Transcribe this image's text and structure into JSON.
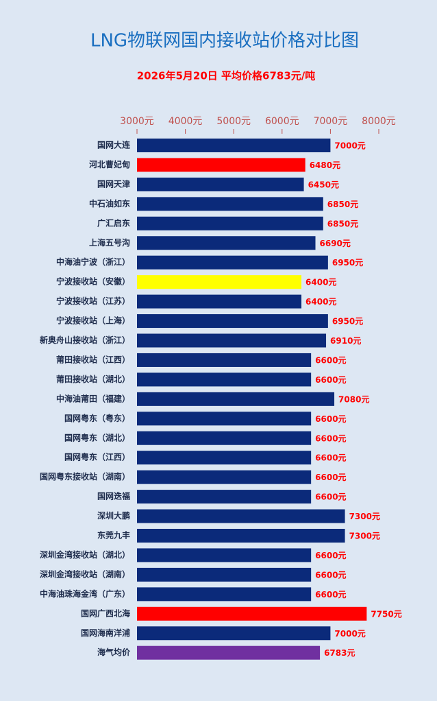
{
  "chart_data": {
    "type": "barh",
    "title": "LNG物联网国内接收站价格对比图",
    "subtitle": "2026年5月20日 平均价格6783元/吨",
    "categories": [
      "国网大连",
      "河北曹妃甸",
      "国网天津",
      "中石油如东",
      "广汇启东",
      "上海五号沟",
      "中海油宁波（浙江）",
      "宁波接收站（安徽）",
      "宁波接收站（江苏）",
      "宁波接收站（上海）",
      "新奥舟山接收站（浙江）",
      "莆田接收站（江西）",
      "莆田接收站（湖北）",
      "中海油莆田（福建）",
      "国网粤东（粤东）",
      "国网粤东（湖北）",
      "国网粤东（江西）",
      "国网粤东接收站（湖南）",
      "国网迭福",
      "深圳大鹏",
      "东莞九丰",
      "深圳金湾接收站（湖北）",
      "深圳金湾接收站（湖南）",
      "中海油珠海金湾（广东）",
      "国网广西北海",
      "国网海南洋浦",
      "海气均价"
    ],
    "values": [
      7000,
      6480,
      6450,
      6850,
      6850,
      6690,
      6950,
      6400,
      6400,
      6950,
      6910,
      6600,
      6600,
      7080,
      6600,
      6600,
      6600,
      6600,
      6600,
      7300,
      7300,
      6600,
      6600,
      6600,
      7750,
      7000,
      6783
    ],
    "value_labels": [
      "7000元",
      "6480元",
      "6450元",
      "6850元",
      "6850元",
      "6690元",
      "6950元",
      "6400元",
      "6400元",
      "6950元",
      "6910元",
      "6600元",
      "6600元",
      "7080元",
      "6600元",
      "6600元",
      "6600元",
      "6600元",
      "6600元",
      "7300元",
      "7300元",
      "6600元",
      "6600元",
      "6600元",
      "7750元",
      "7000元",
      "6783元"
    ],
    "colors": [
      "#0b2a7a",
      "#ff0000",
      "#0b2a7a",
      "#0b2a7a",
      "#0b2a7a",
      "#0b2a7a",
      "#0b2a7a",
      "#ffff00",
      "#0b2a7a",
      "#0b2a7a",
      "#0b2a7a",
      "#0b2a7a",
      "#0b2a7a",
      "#0b2a7a",
      "#0b2a7a",
      "#0b2a7a",
      "#0b2a7a",
      "#0b2a7a",
      "#0b2a7a",
      "#0b2a7a",
      "#0b2a7a",
      "#0b2a7a",
      "#0b2a7a",
      "#0b2a7a",
      "#ff0000",
      "#0b2a7a",
      "#7030a0"
    ],
    "xlim": [
      3000,
      8000
    ],
    "xticks": [
      {
        "value": 3000,
        "label": "3000元"
      },
      {
        "value": 4000,
        "label": "4000元"
      },
      {
        "value": 5000,
        "label": "5000元"
      },
      {
        "value": 6000,
        "label": "6000元"
      },
      {
        "value": 7000,
        "label": "7000元"
      },
      {
        "value": 8000,
        "label": "8000元"
      }
    ]
  }
}
